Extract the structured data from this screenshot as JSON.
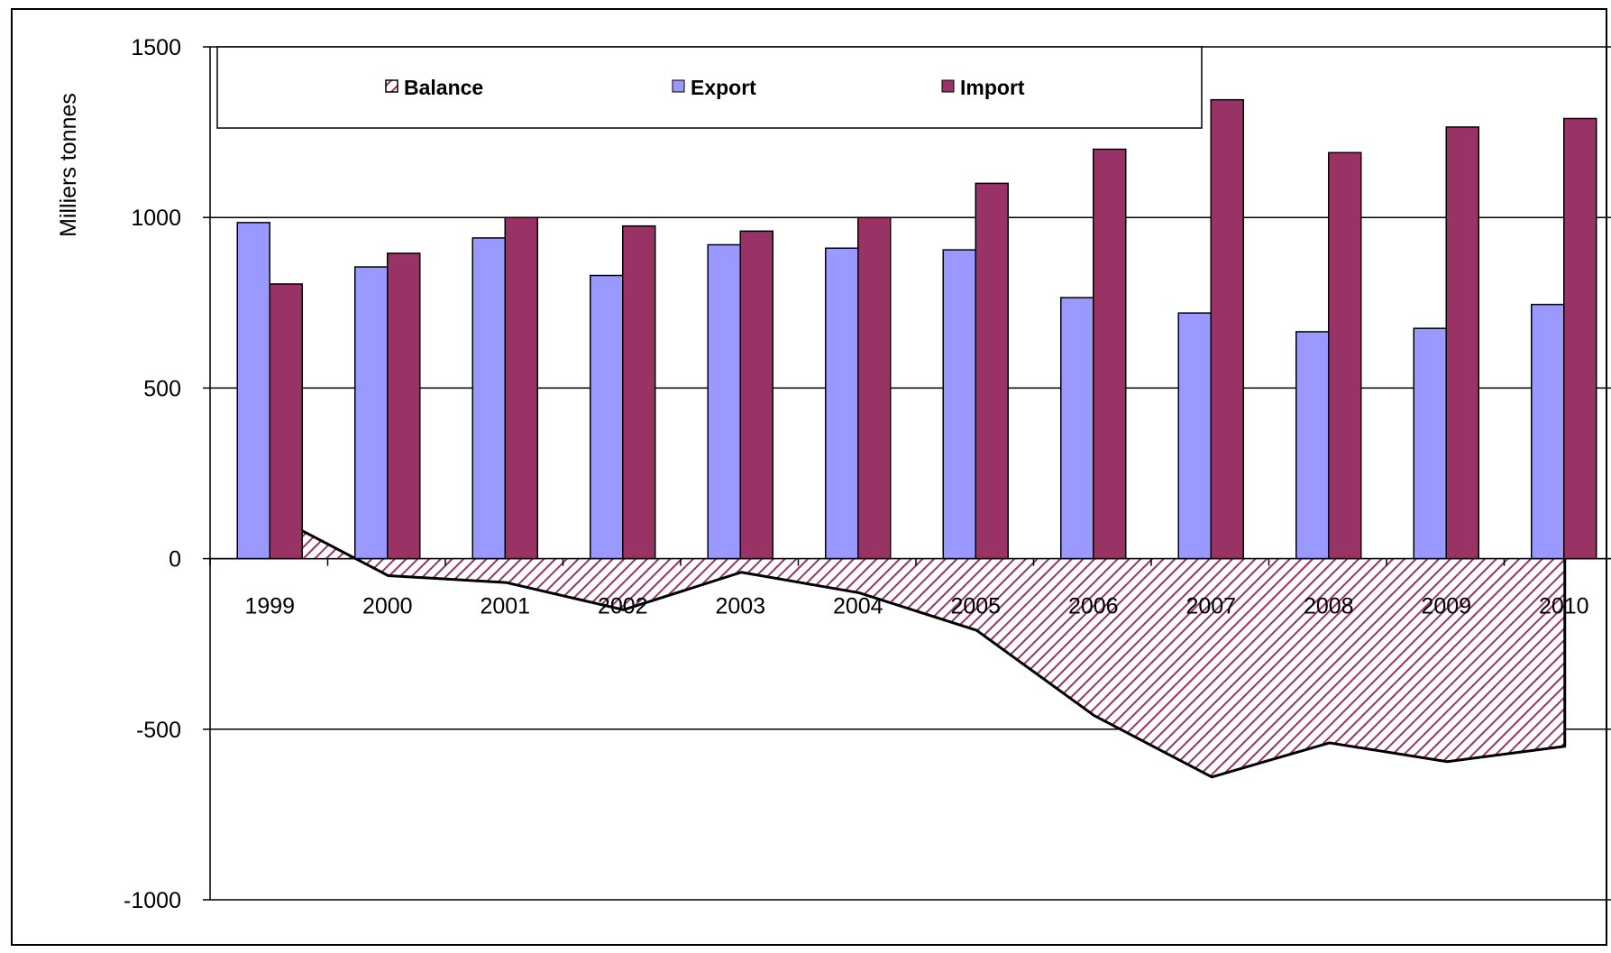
{
  "chart_data": {
    "type": "bar",
    "title": "",
    "xlabel": "",
    "ylabel": "Milliers tonnes",
    "ylim": [
      -1000,
      1500
    ],
    "yticks": [
      1500,
      1000,
      500,
      0,
      -500,
      -1000
    ],
    "grid": true,
    "legend_position": "top",
    "categories": [
      "1999",
      "2000",
      "2001",
      "2002",
      "2003",
      "2004",
      "2005",
      "2006",
      "2007",
      "2008",
      "2009",
      "2010"
    ],
    "series": [
      {
        "name": "Balance",
        "kind": "area",
        "style": "hatched",
        "values": [
          130,
          -50,
          -70,
          -150,
          -40,
          -100,
          -210,
          -460,
          -640,
          -540,
          -595,
          -550
        ]
      },
      {
        "name": "Export",
        "kind": "bar",
        "values": [
          985,
          855,
          940,
          830,
          920,
          910,
          905,
          765,
          720,
          665,
          675,
          745
        ]
      },
      {
        "name": "Import",
        "kind": "bar",
        "values": [
          805,
          895,
          1000,
          975,
          960,
          1000,
          1100,
          1200,
          1345,
          1190,
          1265,
          1290
        ]
      }
    ]
  },
  "colors": {
    "export": "#9999ff",
    "import": "#993366",
    "balance_hatch": "#993366",
    "outline": "#000000",
    "grid": "#000000"
  }
}
